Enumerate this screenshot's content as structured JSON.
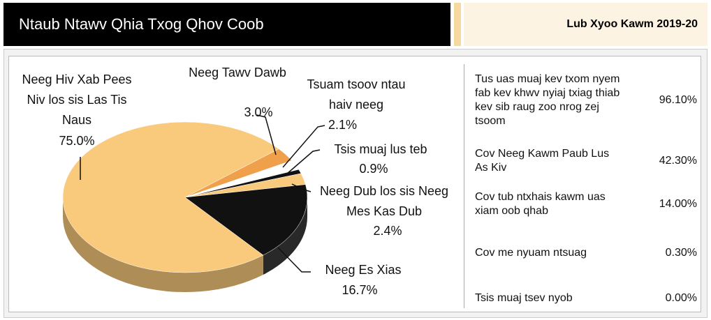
{
  "header": {
    "title": "Ntaub Ntawv Qhia Txog Qhov Coob",
    "subtitle": "Lub Xyoo Kawm 2019-20"
  },
  "chart_data": {
    "type": "pie",
    "categories": [
      "Neeg Tawv Dawb",
      "Tsuam tsoov ntau haiv neeg",
      "Tsis muaj lus teb",
      "Neeg Dub los sis Neeg Mes Kas Dub",
      "Neeg Es Xias",
      "Neeg Hiv Xab Pees Niv los sis Las Tis Naus"
    ],
    "values": [
      3.0,
      2.1,
      0.9,
      2.4,
      16.7,
      75.0
    ],
    "value_labels": [
      "3.0%",
      "2.1%",
      "0.9%",
      "2.4%",
      "16.7%",
      "75.0%"
    ],
    "colors": [
      "#f0a04b",
      "#ffffff",
      "#111111",
      "#f9c97c",
      "#111111",
      "#f9c97c"
    ]
  },
  "stats": [
    {
      "label": "Tus uas muaj kev txom nyem fab kev khwv nyiaj txiag thiab kev sib raug zoo nrog zej tsoom",
      "value": "96.10%"
    },
    {
      "label": "Cov Neeg Kawm Paub Lus As Kiv",
      "value": "42.30%"
    },
    {
      "label": "Cov tub ntxhais kawm uas xiam oob qhab",
      "value": "14.00%"
    },
    {
      "label": "Cov me nyuam ntsuag",
      "value": "0.30%"
    },
    {
      "label": "Tsis muaj tsev nyob",
      "value": "0.00%"
    }
  ]
}
